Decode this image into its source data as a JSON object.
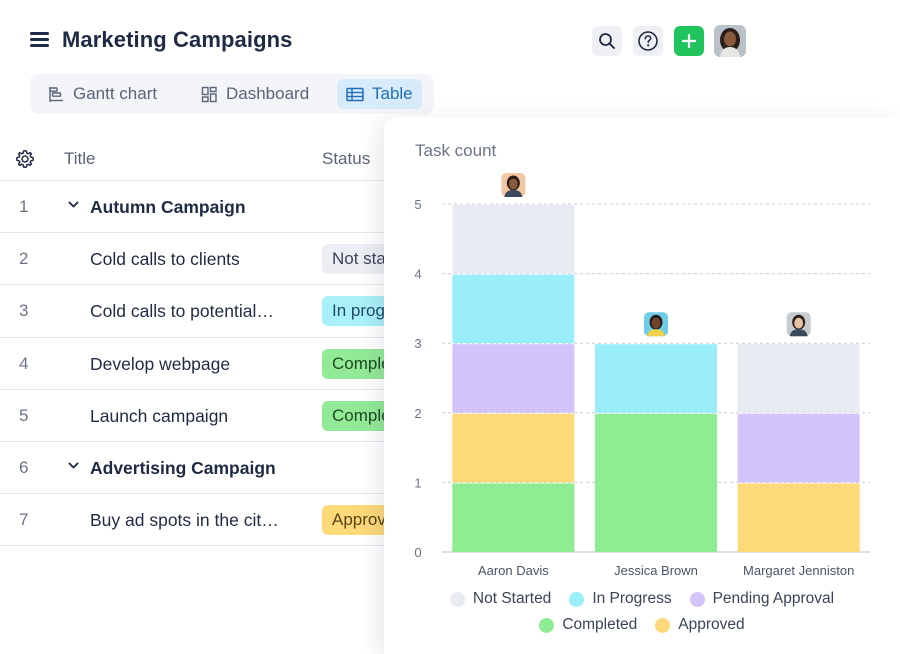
{
  "header": {
    "title": "Marketing Campaigns",
    "icons": [
      "menu-icon",
      "search-icon",
      "help-icon",
      "plus-icon"
    ]
  },
  "tabs": [
    {
      "label": "Gantt chart",
      "icon": "gantt-icon",
      "active": false
    },
    {
      "label": "Dashboard",
      "icon": "dashboard-icon",
      "active": false
    },
    {
      "label": "Table",
      "icon": "table-icon",
      "active": true
    }
  ],
  "table": {
    "columns": {
      "title": "Title",
      "status": "Status"
    },
    "rows": [
      {
        "num": "1",
        "title": "Autumn Campaign",
        "group": true,
        "status": ""
      },
      {
        "num": "2",
        "title": "Cold calls to clients",
        "group": false,
        "status": "Not started",
        "status_bg": "#eceef3",
        "status_color": "#3a4458"
      },
      {
        "num": "3",
        "title": "Cold calls to potential…",
        "group": false,
        "status": "In progress",
        "status_bg": "#a9f0f8",
        "status_color": "#1f4b66"
      },
      {
        "num": "4",
        "title": "Develop webpage",
        "group": false,
        "status": "Completed",
        "status_bg": "#93ea96",
        "status_color": "#1d4a22"
      },
      {
        "num": "5",
        "title": "Launch campaign",
        "group": false,
        "status": "Completed",
        "status_bg": "#93ea96",
        "status_color": "#1d4a22"
      },
      {
        "num": "6",
        "title": "Advertising Campaign",
        "group": true,
        "status": ""
      },
      {
        "num": "7",
        "title": "Buy ad spots in the cit…",
        "group": false,
        "status": "Approved",
        "status_bg": "#fdd97a",
        "status_color": "#5a4410"
      }
    ]
  },
  "chart_data": {
    "type": "bar",
    "stacked": true,
    "title": "Task count",
    "categories": [
      "Aaron Davis",
      "Jessica Brown",
      "Margaret Jenniston"
    ],
    "ylim": [
      0,
      5
    ],
    "yticks": [
      "0",
      "1",
      "2",
      "3",
      "4",
      "5"
    ],
    "grid": true,
    "legend_placement": "bottom",
    "series": [
      {
        "name": "Completed",
        "color": "#8eec92",
        "values": [
          1,
          2,
          0
        ]
      },
      {
        "name": "Approved",
        "color": "#fdd97a",
        "values": [
          1,
          0,
          1
        ]
      },
      {
        "name": "Pending Approval",
        "color": "#d3c5fb",
        "values": [
          1,
          0,
          1
        ]
      },
      {
        "name": "In Progress",
        "color": "#9aeefa",
        "values": [
          1,
          1,
          0
        ]
      },
      {
        "name": "Not Started",
        "color": "#e8ebf2",
        "values": [
          1,
          0,
          1
        ]
      }
    ],
    "legend_rows": [
      [
        "Not Started",
        "In Progress",
        "Pending Approval"
      ],
      [
        "Completed",
        "Approved"
      ]
    ]
  }
}
